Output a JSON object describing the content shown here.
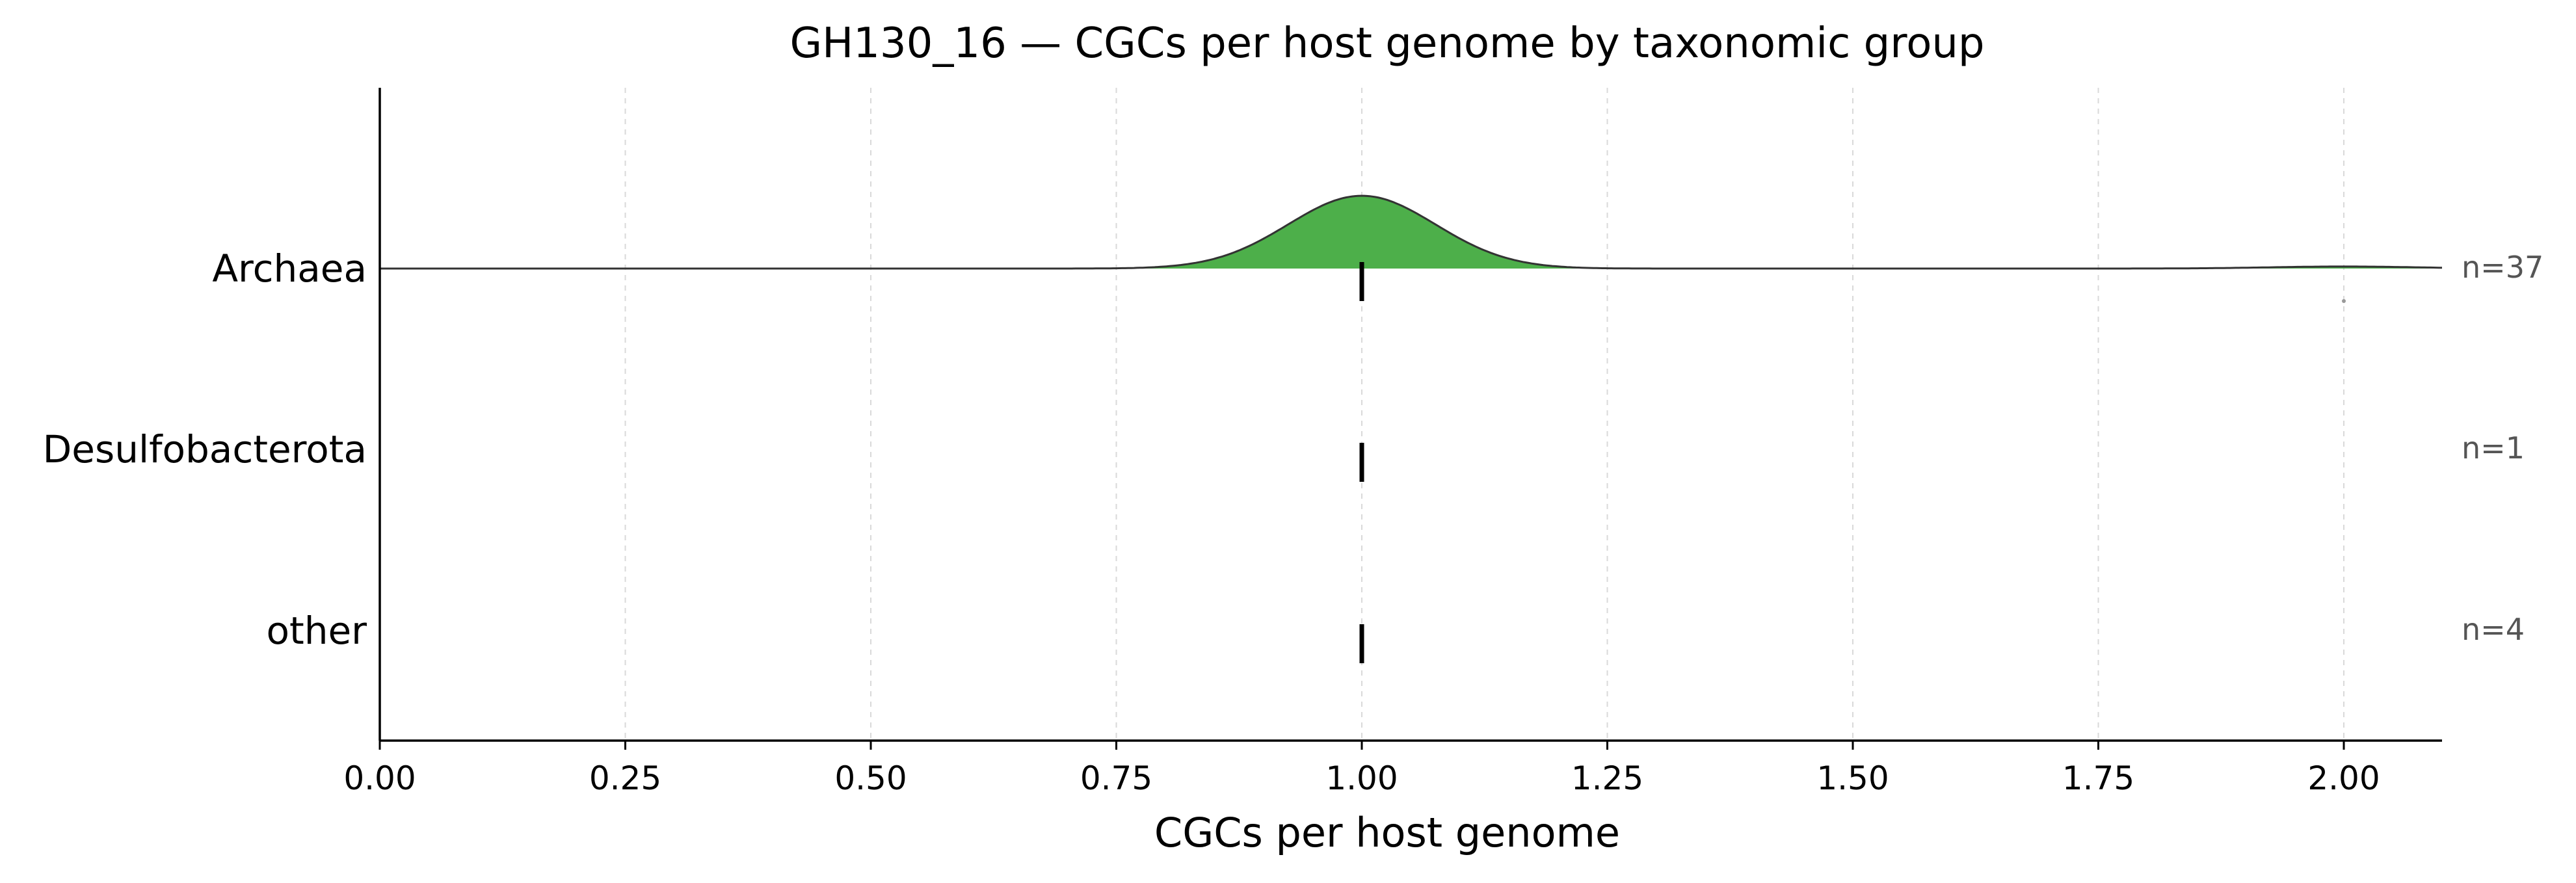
{
  "chart_data": {
    "type": "ridgeline",
    "title": "GH130_16 — CGCs per host genome by taxonomic group",
    "xlabel": "CGCs per host genome",
    "xlim": [
      0,
      2.1
    ],
    "xticks": [
      0,
      0.25,
      0.5,
      0.75,
      1.0,
      1.25,
      1.5,
      1.75,
      2.0
    ],
    "xtick_labels": [
      "0.00",
      "0.25",
      "0.50",
      "0.75",
      "1.00",
      "1.25",
      "1.50",
      "1.75",
      "2.00"
    ],
    "grid": "vertical dashed",
    "categories": [
      "Archaea",
      "Desulfobacterota",
      "other"
    ],
    "counts": [
      "n=37",
      "n=1",
      "n=4"
    ],
    "medians": [
      1.0,
      1.0,
      1.0
    ],
    "density": [
      {
        "group": "Archaea",
        "color": "#4daf4a",
        "components": [
          {
            "center": 1.0,
            "sd": 0.075,
            "weight": 36
          },
          {
            "center": 2.0,
            "sd": 0.075,
            "weight": 1
          }
        ]
      },
      {
        "group": "Desulfobacterota",
        "color": "#4daf4a",
        "components": []
      },
      {
        "group": "other",
        "color": "#4daf4a",
        "components": []
      }
    ],
    "outliers": [
      {
        "group": "Archaea",
        "x": 2.0
      }
    ]
  }
}
